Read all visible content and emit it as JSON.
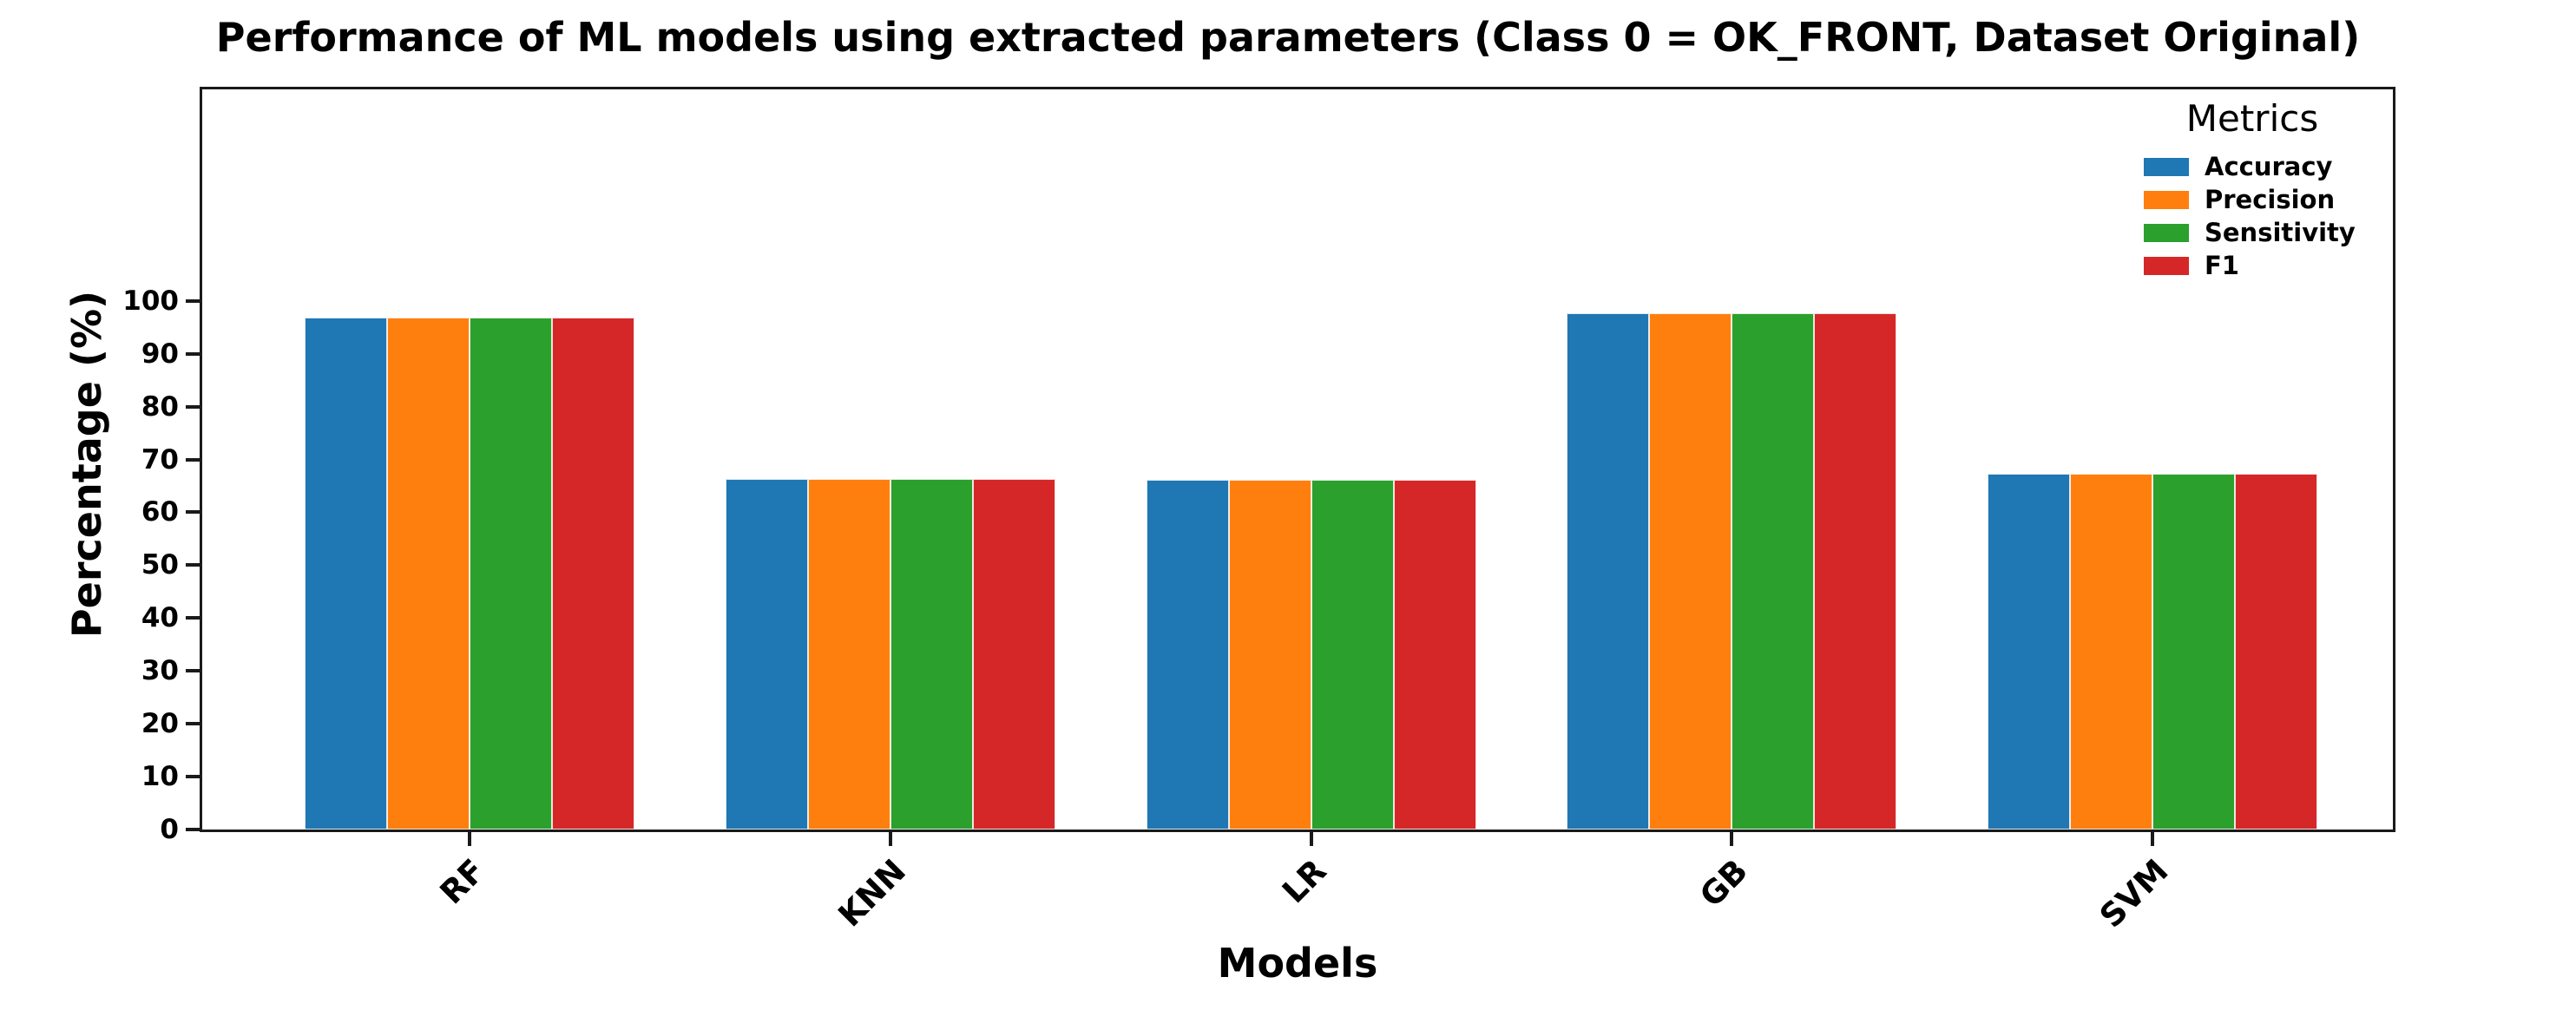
{
  "figure": {
    "background": "#ffffff",
    "spine_color": "#1a1a1a",
    "text_color": "#000000"
  },
  "chart_data": {
    "type": "bar",
    "title": "Performance of ML models using extracted parameters (Class 0 = OK_FRONT, Dataset Original)",
    "xlabel": "Models",
    "ylabel": "Percentage (%)",
    "categories": [
      "RF",
      "KNN",
      "LR",
      "GB",
      "SVM"
    ],
    "series": [
      {
        "name": "Accuracy",
        "color": "#1f77b4",
        "values": [
          96.9,
          66.3,
          66.1,
          97.7,
          67.3
        ]
      },
      {
        "name": "Precision",
        "color": "#ff7f0e",
        "values": [
          96.9,
          66.3,
          66.1,
          97.7,
          67.3
        ]
      },
      {
        "name": "Sensitivity",
        "color": "#2ca02c",
        "values": [
          96.9,
          66.3,
          66.1,
          97.7,
          67.3
        ]
      },
      {
        "name": "F1",
        "color": "#d62728",
        "values": [
          96.9,
          66.3,
          66.1,
          97.7,
          67.3
        ]
      }
    ],
    "legend": {
      "title": "Metrics",
      "position": "upper right"
    },
    "yticks": [
      0,
      10,
      20,
      30,
      40,
      50,
      60,
      70,
      80,
      90,
      100
    ],
    "ylim": [
      0,
      140
    ],
    "xticks_rotation_deg": 45,
    "grid": false
  }
}
